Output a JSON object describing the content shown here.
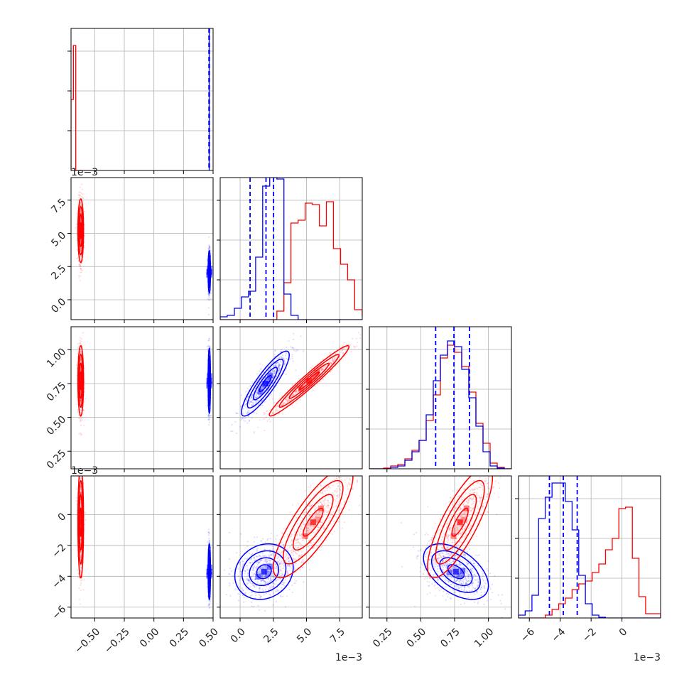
{
  "colors": {
    "series_a": "#ff0000",
    "series_b": "#0000ff",
    "grid": "#b0b0b0",
    "frame": "#000000"
  },
  "chart_data": {
    "type": "corner",
    "grid": true,
    "series": [
      {
        "name": "",
        "color": "#ff0000"
      },
      {
        "name": "",
        "color": "#0000ff"
      }
    ],
    "parameters": [
      {
        "range": [
          -0.7,
          0.5
        ],
        "ticks": [
          -0.5,
          -0.25,
          0.0,
          0.25,
          0.5
        ],
        "tick_labels": [
          "−0.50",
          "−0.25",
          "0.00",
          "0.25",
          "0.50"
        ],
        "offset": ""
      },
      {
        "range": [
          -0.0015,
          0.0092
        ],
        "ticks": [
          0.0,
          0.0025,
          0.005,
          0.0075
        ],
        "tick_labels": [
          "0.0",
          "2.5",
          "5.0",
          "7.5"
        ],
        "offset": "1e−3"
      },
      {
        "range": [
          0.12,
          1.17
        ],
        "ticks": [
          0.25,
          0.5,
          0.75,
          1.0
        ],
        "tick_labels": [
          "0.25",
          "0.50",
          "0.75",
          "1.00"
        ],
        "offset": ""
      },
      {
        "range": [
          -0.0067,
          0.0025
        ],
        "ticks": [
          -0.006,
          -0.004,
          -0.002,
          0.0
        ],
        "tick_labels": [
          "−6",
          "−4",
          "−2",
          "0"
        ],
        "offset": "1e−3"
      }
    ],
    "diagonal": [
      {
        "bins": [
          -0.7,
          -0.68,
          -0.66,
          -0.64,
          -0.62,
          -0.6,
          -0.58,
          -0.56,
          -0.54,
          -0.52,
          -0.5
        ],
        "series_a": [
          0.5,
          0.88,
          0.0,
          0,
          0,
          0,
          0,
          0,
          0,
          0
        ],
        "series_b_spike": 0.467,
        "quantiles_b": [
          0.465,
          0.467,
          0.469
        ]
      },
      {
        "bins": [
          -0.0015,
          -0.00097,
          -0.00043,
          0.0001,
          0.00063,
          0.00117,
          0.0017,
          0.00223,
          0.00277,
          0.0033,
          0.00383,
          0.00437,
          0.0049,
          0.00543,
          0.00597,
          0.0065,
          0.00703,
          0.00757,
          0.0081,
          0.00863,
          0.0092
        ],
        "series_a": [
          0,
          0,
          0,
          0,
          0,
          0,
          0,
          0,
          0.06,
          0.26,
          0.68,
          0.7,
          0.82,
          0.81,
          0.66,
          0.83,
          0.5,
          0.39,
          0.28,
          0.07,
          0.02
        ],
        "series_b": [
          0.02,
          0.03,
          0.08,
          0.16,
          0.2,
          0.44,
          0.94,
          1.0,
          0.99,
          0.18,
          0.03,
          0,
          0,
          0,
          0,
          0,
          0,
          0,
          0,
          0
        ],
        "quantiles_b": [
          0.00075,
          0.00195,
          0.00252
        ]
      },
      {
        "bins": [
          0.12,
          0.1725,
          0.225,
          0.2775,
          0.33,
          0.3825,
          0.435,
          0.4875,
          0.54,
          0.5925,
          0.645,
          0.6975,
          0.75,
          0.8025,
          0.855,
          0.9075,
          0.96,
          1.0125,
          1.065,
          1.1175,
          1.17
        ],
        "series_a": [
          0,
          0,
          0.005,
          0.02,
          0.03,
          0.07,
          0.13,
          0.2,
          0.34,
          0.52,
          0.78,
          0.87,
          0.82,
          0.72,
          0.54,
          0.32,
          0.18,
          0.04,
          0.01,
          0
        ],
        "series_b": [
          0,
          0,
          0,
          0.01,
          0.02,
          0.06,
          0.12,
          0.2,
          0.38,
          0.62,
          0.8,
          0.9,
          0.86,
          0.7,
          0.5,
          0.3,
          0.12,
          0.02,
          0.005,
          0
        ],
        "quantiles_b": [
          0.61,
          0.745,
          0.86
        ]
      },
      {
        "bins": [
          -0.0067,
          -0.00627,
          -0.00583,
          -0.0054,
          -0.00497,
          -0.00453,
          -0.0041,
          -0.00367,
          -0.00323,
          -0.0028,
          -0.00237,
          -0.00193,
          -0.0015,
          -0.00107,
          -0.00063,
          -0.0002,
          0.00023,
          0.00067,
          0.0011,
          0.00153,
          0.0025
        ],
        "series_a": [
          0,
          0,
          0,
          0,
          0.02,
          0.06,
          0.1,
          0.14,
          0.2,
          0.24,
          0.26,
          0.32,
          0.38,
          0.48,
          0.56,
          0.77,
          0.78,
          0.42,
          0.15,
          0.03
        ],
        "series_b": [
          0.02,
          0.05,
          0.16,
          0.7,
          0.85,
          0.95,
          0.95,
          0.82,
          0.62,
          0.3,
          0.1,
          0.02,
          0.005,
          0,
          0,
          0,
          0,
          0,
          0,
          0
        ],
        "quantiles_b": [
          -0.0047,
          -0.0038,
          -0.0029
        ]
      }
    ],
    "pairs": [
      {
        "row": 1,
        "col": 0,
        "series_a": {
          "mean": [
            -0.618,
            0.0052
          ],
          "std": [
            0.012,
            0.0012
          ],
          "rho": 0
        },
        "series_b": {
          "mean": [
            0.468,
            0.0021
          ],
          "std": [
            0.005,
            0.0008
          ],
          "rho": 0
        }
      },
      {
        "row": 2,
        "col": 0,
        "series_a": {
          "mean": [
            -0.618,
            0.77
          ],
          "std": [
            0.012,
            0.13
          ],
          "rho": 0
        },
        "series_b": {
          "mean": [
            0.468,
            0.77
          ],
          "std": [
            0.005,
            0.12
          ],
          "rho": 0
        }
      },
      {
        "row": 2,
        "col": 1,
        "series_a": {
          "mean": [
            0.0052,
            0.77
          ],
          "std": [
            0.0015,
            0.13
          ],
          "rho": 0.97
        },
        "series_b": {
          "mean": [
            0.0019,
            0.75
          ],
          "std": [
            0.0009,
            0.12
          ],
          "rho": 0.88
        }
      },
      {
        "row": 3,
        "col": 0,
        "series_a": {
          "mean": [
            -0.618,
            -0.0005
          ],
          "std": [
            0.012,
            0.0018
          ],
          "rho": 0
        },
        "series_b": {
          "mean": [
            0.468,
            -0.0037
          ],
          "std": [
            0.005,
            0.0009
          ],
          "rho": 0
        }
      },
      {
        "row": 3,
        "col": 1,
        "series_a": {
          "mean": [
            0.0055,
            -0.0005
          ],
          "std": [
            0.0015,
            0.0018
          ],
          "rho": 0.82
        },
        "series_b": {
          "mean": [
            0.0018,
            -0.0037
          ],
          "std": [
            0.0011,
            0.0009
          ],
          "rho": 0.15
        }
      },
      {
        "row": 3,
        "col": 2,
        "series_a": {
          "mean": [
            0.79,
            -0.0005
          ],
          "std": [
            0.12,
            0.0018
          ],
          "rho": 0.8
        },
        "series_b": {
          "mean": [
            0.76,
            -0.0037
          ],
          "std": [
            0.12,
            0.0009
          ],
          "rho": -0.5
        }
      }
    ]
  }
}
